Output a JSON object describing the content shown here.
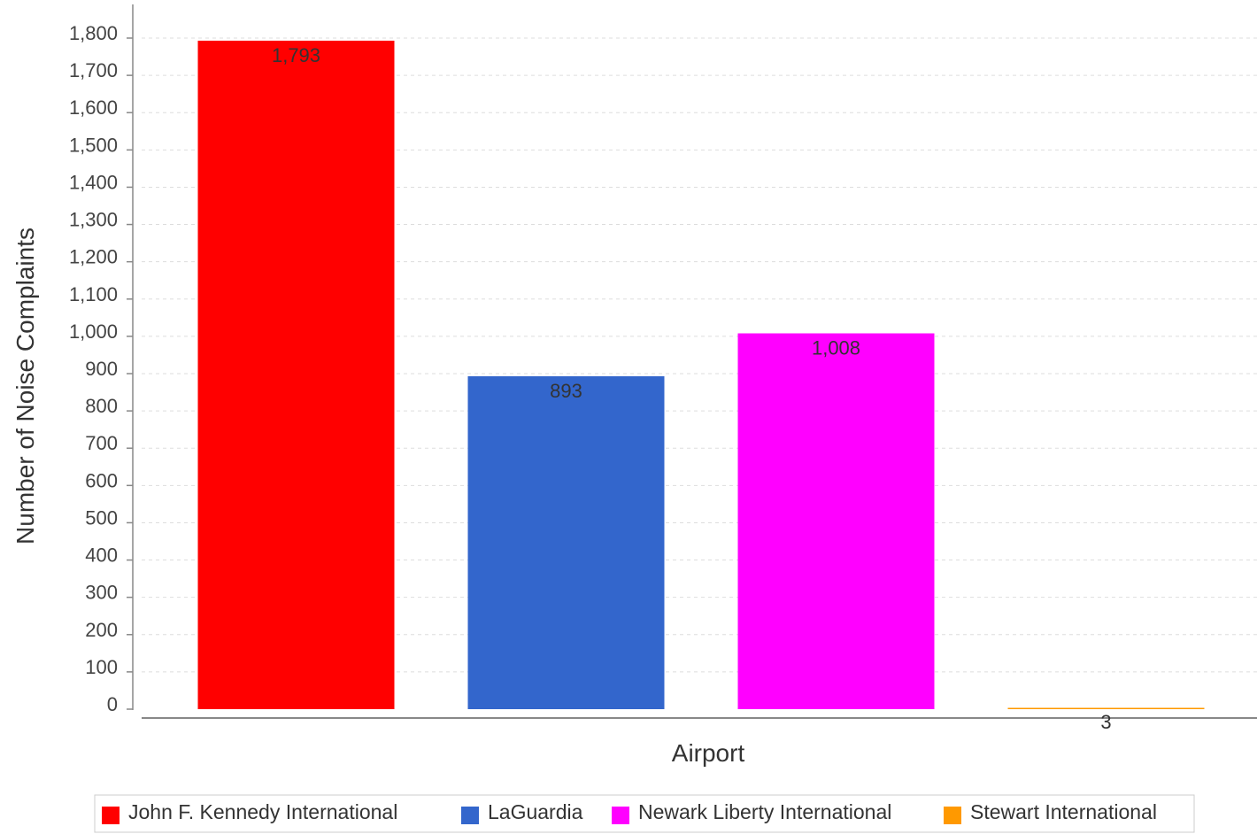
{
  "chart_data": {
    "type": "bar",
    "categories": [
      "John F. Kennedy International",
      "LaGuardia",
      "Newark Liberty International",
      "Stewart International"
    ],
    "values": [
      1793,
      893,
      1008,
      3
    ],
    "data_labels": [
      "1,793",
      "893",
      "1,008",
      "3"
    ],
    "colors": [
      "#ff0000",
      "#3366cc",
      "#ff00ff",
      "#ff9900"
    ],
    "xlabel": "Airport",
    "ylabel": "Number of Noise Complaints",
    "ylim": [
      0,
      1800
    ],
    "yticks": [
      0,
      100,
      200,
      300,
      400,
      500,
      600,
      700,
      800,
      900,
      1000,
      1100,
      1200,
      1300,
      1400,
      1500,
      1600,
      1700,
      1800
    ],
    "ytick_labels": [
      "0",
      "100",
      "200",
      "300",
      "400",
      "500",
      "600",
      "700",
      "800",
      "900",
      "1,000",
      "1,100",
      "1,200",
      "1,300",
      "1,400",
      "1,500",
      "1,600",
      "1,700",
      "1,800"
    ],
    "grid": true,
    "legend_position": "bottom",
    "legend": [
      "John F. Kennedy International",
      "LaGuardia",
      "Newark Liberty International",
      "Stewart International"
    ]
  }
}
